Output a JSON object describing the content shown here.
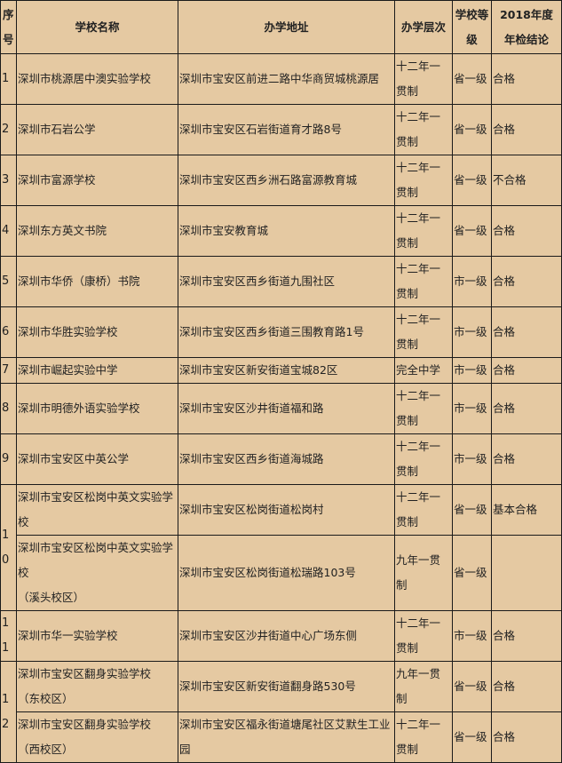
{
  "table": {
    "headers": [
      "序\n号",
      "学校名称",
      "办学地址",
      "办学层次",
      "学校等\n级",
      "2018年度\n年检结论"
    ],
    "rows": [
      {
        "no": "1",
        "name": "深圳市桃源居中澳实验学校",
        "address": "深圳市宝安区前进二路中华商贸城桃源居",
        "level": "十二年一贯制",
        "grade": "省一级",
        "result": "合格"
      },
      {
        "no": "2",
        "name": "深圳市石岩公学",
        "address": "深圳市宝安区石岩街道育才路8号",
        "level": "十二年一贯制",
        "grade": "省一级",
        "result": "合格"
      },
      {
        "no": "3",
        "name": "深圳市富源学校",
        "address": "深圳市宝安区西乡洲石路富源教育城",
        "level": "十二年一贯制",
        "grade": "省一级",
        "result": "不合格"
      },
      {
        "no": "4",
        "name": "深圳东方英文书院",
        "address": "深圳市宝安教育城",
        "level": "十二年一贯制",
        "grade": "省一级",
        "result": "合格"
      },
      {
        "no": "5",
        "name": "深圳市华侨（康桥）书院",
        "address": "深圳市宝安区西乡街道九围社区",
        "level": "十二年一贯制",
        "grade": "市一级",
        "result": "合格"
      },
      {
        "no": "6",
        "name": "深圳市华胜实验学校",
        "address": "深圳市宝安区西乡街道三围教育路1号",
        "level": "十二年一贯制",
        "grade": "市一级",
        "result": "合格"
      },
      {
        "no": "7",
        "name": "深圳市崛起实验中学",
        "address": "深圳市宝安区新安街道宝城82区",
        "level": "完全中学",
        "grade": "市一级",
        "result": "合格"
      },
      {
        "no": "8",
        "name": "深圳市明德外语实验学校",
        "address": "深圳市宝安区沙井街道福和路",
        "level": "十二年一贯制",
        "grade": "市一级",
        "result": "合格"
      },
      {
        "no": "9",
        "name": "深圳市宝安区中英公学",
        "address": "深圳市宝安区西乡街道海城路",
        "level": "十二年一贯制",
        "grade": "市一级",
        "result": "合格"
      },
      {
        "no": "10",
        "span": 2,
        "name": "深圳市宝安区松岗中英文实验学校",
        "address": "深圳市宝安区松岗街道松岗村",
        "level": "十二年一贯制",
        "grade": "省一级",
        "result": "基本合格"
      },
      {
        "name": "深圳市宝安区松岗中英文实验学校\n（溪头校区）",
        "address": "深圳市宝安区松岗街道松瑞路103号",
        "level": "九年一贯制",
        "grade": "省一级",
        "result": ""
      },
      {
        "no": "11",
        "name": "深圳市华一实验学校",
        "address": "深圳市宝安区沙井街道中心广场东侧",
        "level": "十二年一贯制",
        "grade": "市一级",
        "result": "合格"
      },
      {
        "no": "12",
        "span": 2,
        "name": "深圳市宝安区翻身实验学校\n（东校区）",
        "address": "深圳市宝安区新安街道翻身路530号",
        "level": "九年一贯制",
        "grade": "省一级",
        "result": "合格"
      },
      {
        "name": "深圳市宝安区翻身实验学校\n（西校区）",
        "address": "深圳市宝安区福永街道塘尾社区艾默生工业园",
        "level": "十二年一贯制",
        "grade": "省一级",
        "result": "合格"
      }
    ]
  },
  "colors": {
    "background": "#e5c9a2",
    "border": "#1a1a1a"
  }
}
